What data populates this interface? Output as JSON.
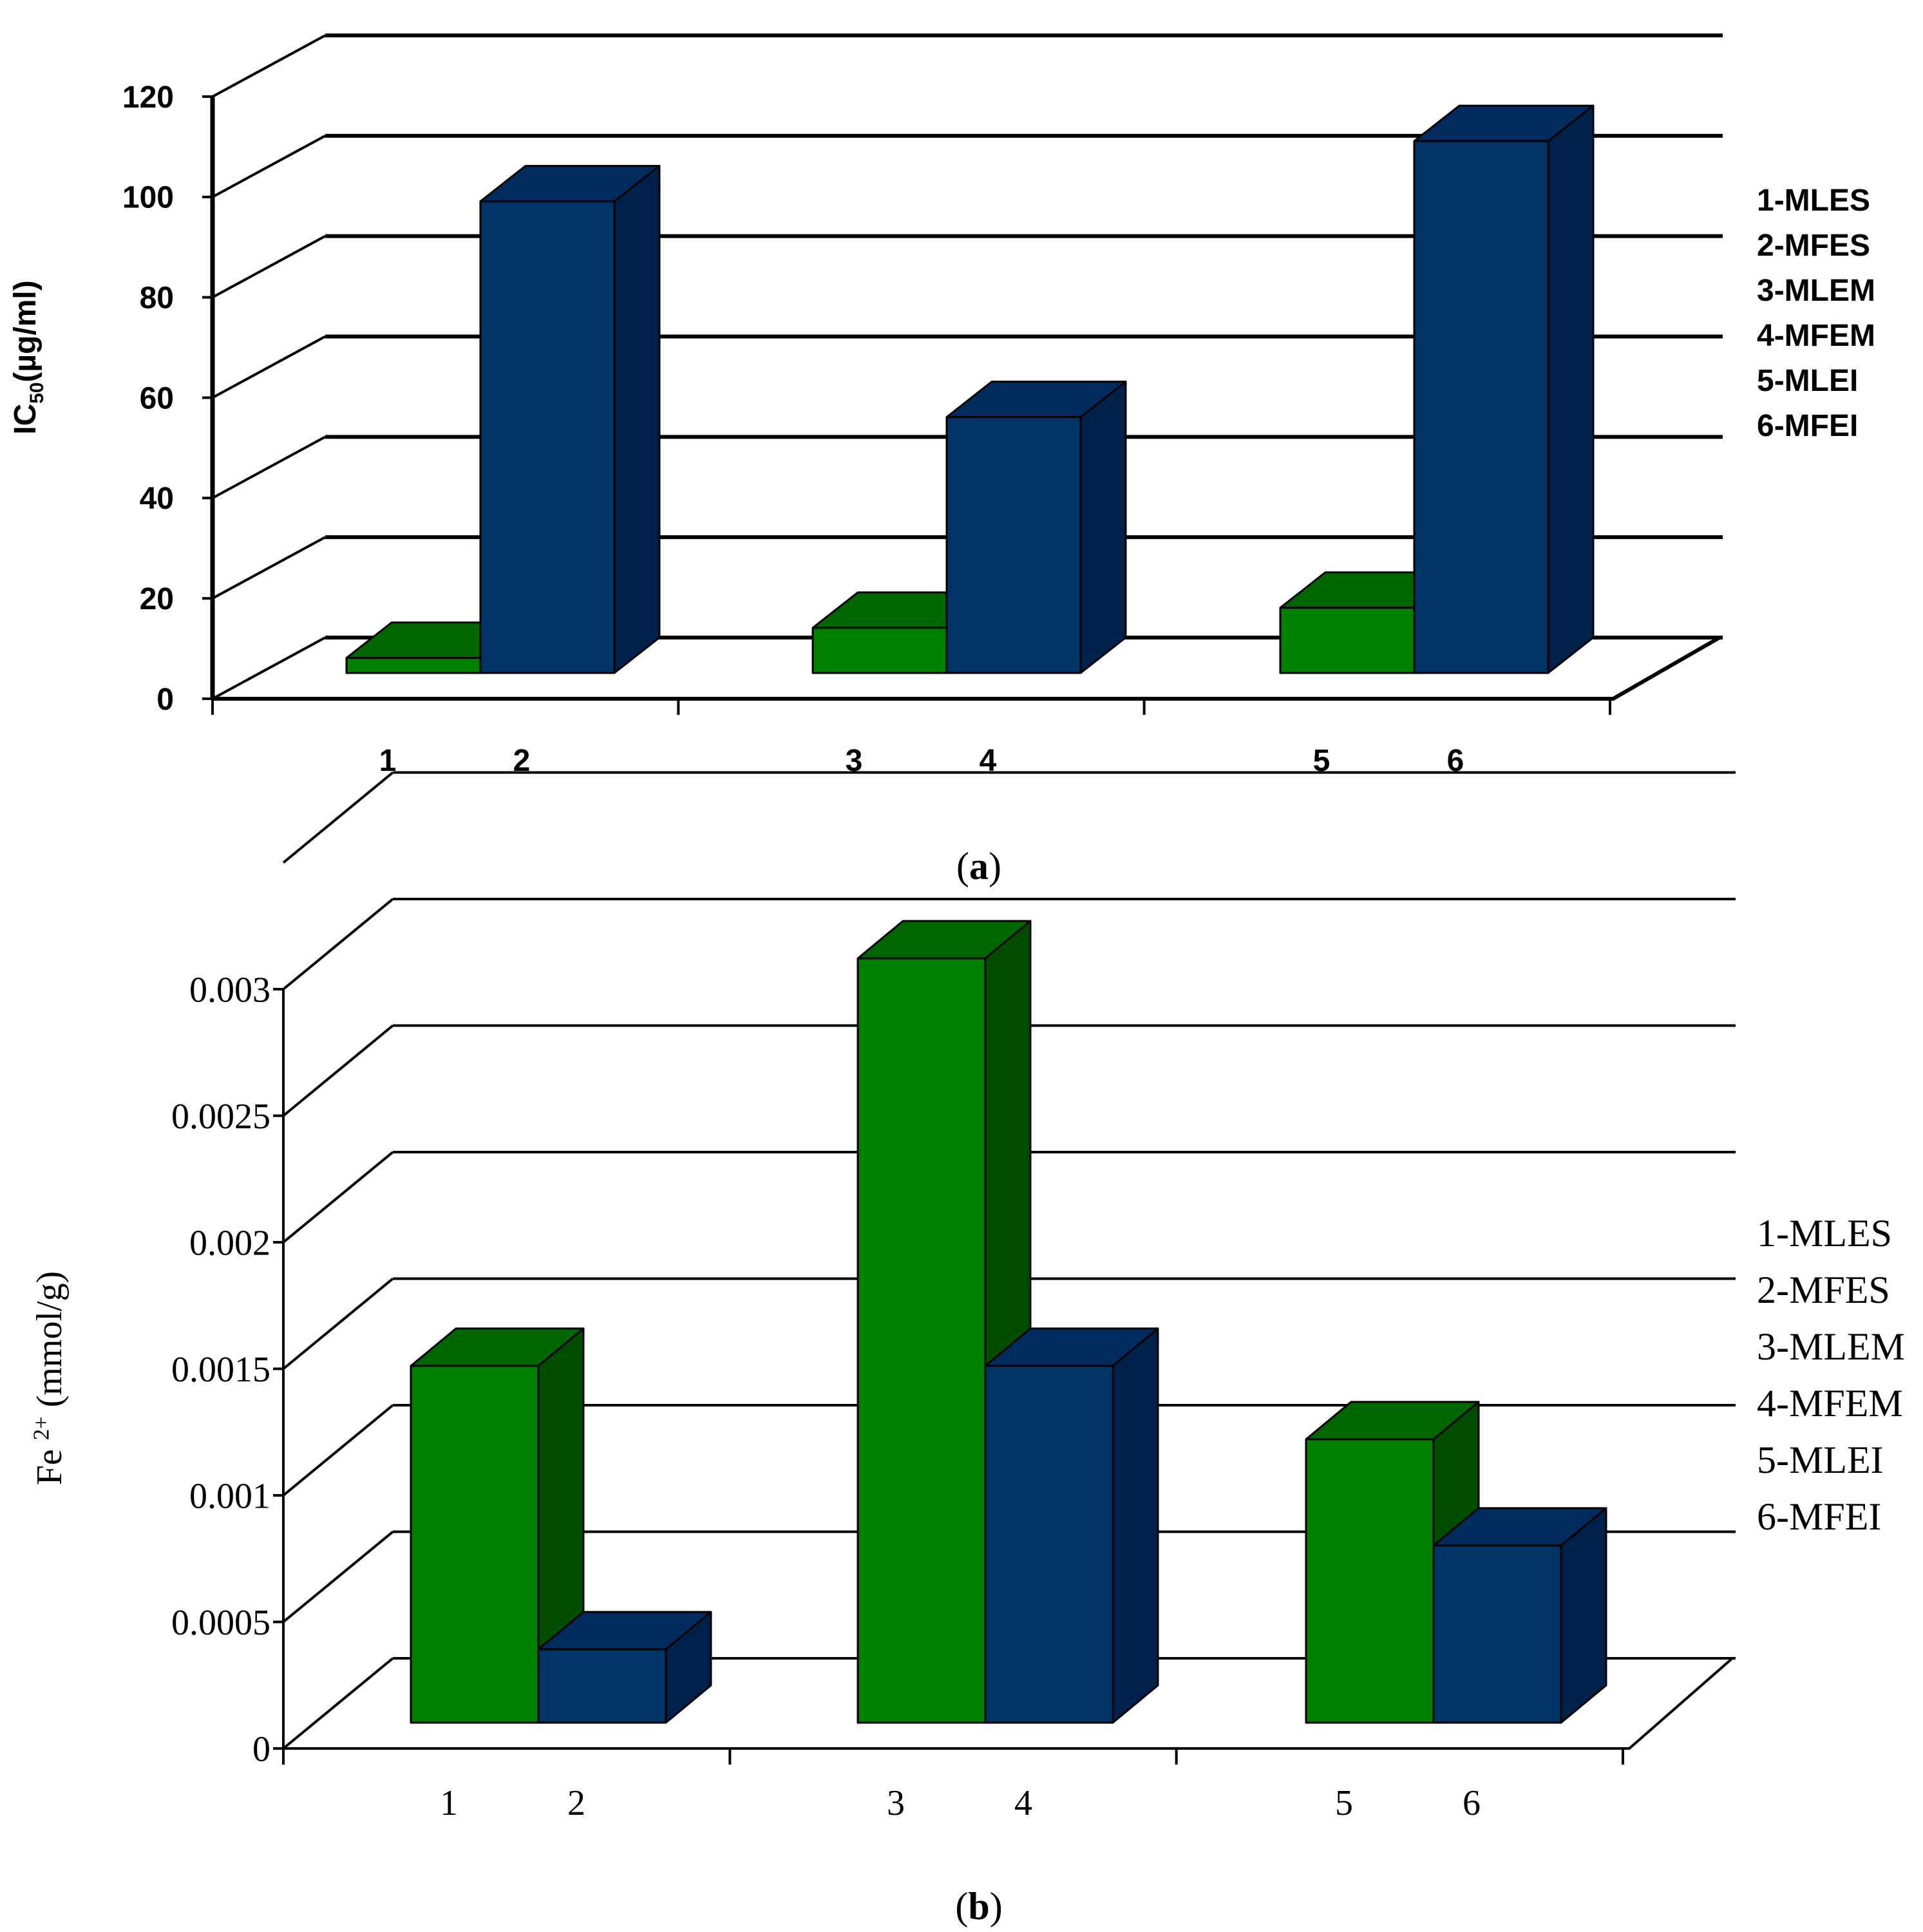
{
  "chart_data": [
    {
      "type": "bar",
      "panel_label": "(a)",
      "panel_label_parts": {
        "open": "(",
        "letter": "a",
        "close": ")"
      },
      "ylabel_main": "IC",
      "ylabel_sub": "50",
      "ylabel_rest": "(µg/ml)",
      "ylim": [
        0,
        120
      ],
      "yticks": [
        "0",
        "20",
        "40",
        "60",
        "80",
        "100",
        "120"
      ],
      "categories": [
        "1",
        "2",
        "3",
        "4",
        "5",
        "6"
      ],
      "values": [
        3,
        94,
        9,
        51,
        13,
        106
      ],
      "bar_colors": [
        "green",
        "blue",
        "green",
        "blue",
        "green",
        "blue"
      ],
      "groups": [
        [
          0,
          1
        ],
        [
          2,
          3
        ],
        [
          4,
          5
        ]
      ],
      "legend": [
        "1-MLES",
        "2-MFES",
        "3-MLEM",
        "4-MFEM",
        "5-MLEI",
        "6-MFEI"
      ],
      "legend_position": "right",
      "grid": true,
      "style": "3d"
    },
    {
      "type": "bar",
      "panel_label": "(b)",
      "panel_label_parts": {
        "open": "(",
        "letter": "b",
        "close": ")"
      },
      "ylabel_main": "Fe ",
      "ylabel_sup": "2+",
      "ylabel_rest": " (mmol/g)",
      "ylim": [
        0,
        0.003
      ],
      "yticks": [
        "0",
        "0.0005",
        "0.001",
        "0.0015",
        "0.002",
        "0.0025",
        "0.003"
      ],
      "categories": [
        "1",
        "2",
        "3",
        "4",
        "5",
        "6"
      ],
      "values": [
        0.00141,
        0.00029,
        0.00302,
        0.00141,
        0.00112,
        0.0007
      ],
      "bar_colors": [
        "green",
        "blue",
        "green",
        "blue",
        "green",
        "blue"
      ],
      "groups": [
        [
          0,
          1
        ],
        [
          2,
          3
        ],
        [
          4,
          5
        ]
      ],
      "legend": [
        "1-MLES",
        "2-MFES",
        "3-MLEM",
        "4-MFEM",
        "5-MLEI",
        "6-MFEI"
      ],
      "legend_position": "right",
      "grid": true,
      "style": "3d"
    }
  ],
  "colors": {
    "green_front": "#008000",
    "green_top": "#006600",
    "green_side": "#004d00",
    "blue_front": "#003366",
    "blue_top": "#002b5c",
    "blue_side": "#00214a",
    "line": "#000000"
  }
}
